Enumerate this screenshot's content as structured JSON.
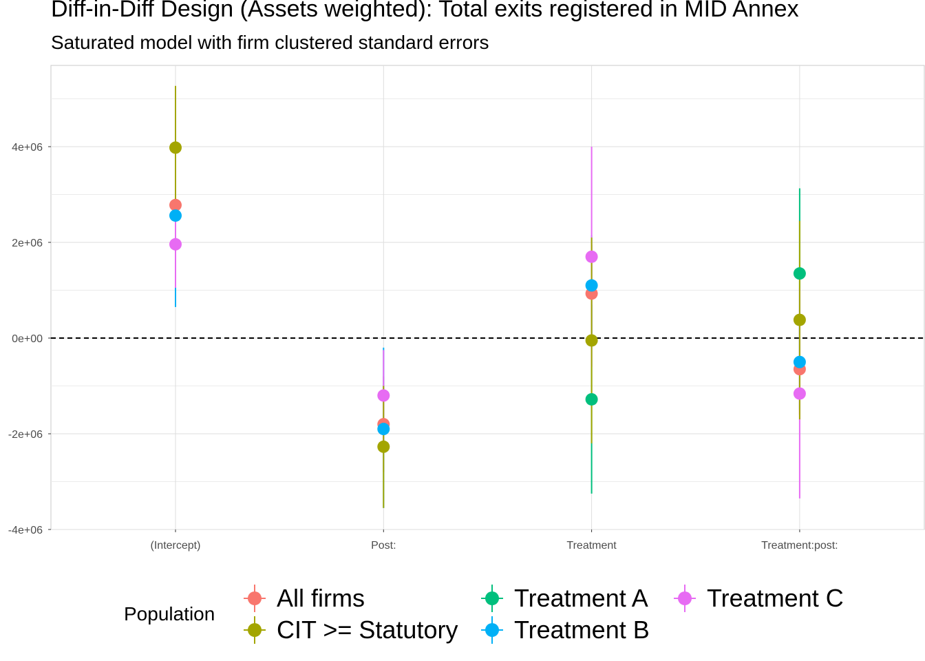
{
  "title": "Diff-in-Diff Design (Assets weighted): Total exits registered in MID Annex",
  "subtitle": "Saturated model with firm clustered standard errors",
  "legend": {
    "title": "Population",
    "items": [
      {
        "label": "All firms",
        "color": "#F8766D"
      },
      {
        "label": "CIT >= Statutory",
        "color": "#A3A500"
      },
      {
        "label": "Treatment A",
        "color": "#00BF7D"
      },
      {
        "label": "Treatment B",
        "color": "#00B0F6"
      },
      {
        "label": "Treatment C",
        "color": "#E76BF3"
      }
    ]
  },
  "chart_data": {
    "type": "scatter",
    "title": "Diff-in-Diff Design (Assets weighted): Total exits registered in MID Annex",
    "subtitle": "Saturated model with firm clustered standard errors",
    "xlabel": "",
    "ylabel": "",
    "categories": [
      "(Intercept)",
      "Post:",
      "Treatment",
      "Treatment:post:"
    ],
    "ylim": [
      -4000000,
      5500000
    ],
    "y_ticks": [
      -4000000,
      -2000000,
      0,
      2000000,
      4000000
    ],
    "y_tick_labels": [
      "-4e+06",
      "-2e+06",
      "0e+00",
      "2e+06",
      "4e+06"
    ],
    "reference_line": 0,
    "grid": true,
    "legend_position": "bottom",
    "series": [
      {
        "name": "All firms",
        "color": "#F8766D",
        "estimates": [
          2780000,
          -1800000,
          930000,
          -650000
        ],
        "ci_low": [
          1400000,
          -2800000,
          -100000,
          -1600000
        ],
        "ci_high": [
          4100000,
          -800000,
          1950000,
          300000
        ]
      },
      {
        "name": "Treatment A",
        "color": "#00BF7D",
        "estimates": [
          null,
          null,
          -1280000,
          1350000
        ],
        "ci_low": [
          null,
          null,
          -3250000,
          -400000
        ],
        "ci_high": [
          null,
          null,
          700000,
          3130000
        ]
      },
      {
        "name": "Treatment B",
        "color": "#00B0F6",
        "estimates": [
          2560000,
          -1900000,
          1100000,
          -500000
        ],
        "ci_low": [
          650000,
          -3550000,
          0,
          -1500000
        ],
        "ci_high": [
          4450000,
          -200000,
          2150000,
          450000
        ]
      },
      {
        "name": "Treatment C",
        "color": "#E76BF3",
        "estimates": [
          1960000,
          -1200000,
          1700000,
          -1160000
        ],
        "ci_low": [
          1050000,
          -2200000,
          -600000,
          -3350000
        ],
        "ci_high": [
          2900000,
          -250000,
          4000000,
          1050000
        ]
      },
      {
        "name": "CIT >= Statutory",
        "color": "#A3A500",
        "estimates": [
          3980000,
          -2270000,
          -50000,
          380000
        ],
        "ci_low": [
          2700000,
          -3550000,
          -2200000,
          -1700000
        ],
        "ci_high": [
          5270000,
          -1000000,
          2100000,
          2450000
        ]
      }
    ]
  }
}
